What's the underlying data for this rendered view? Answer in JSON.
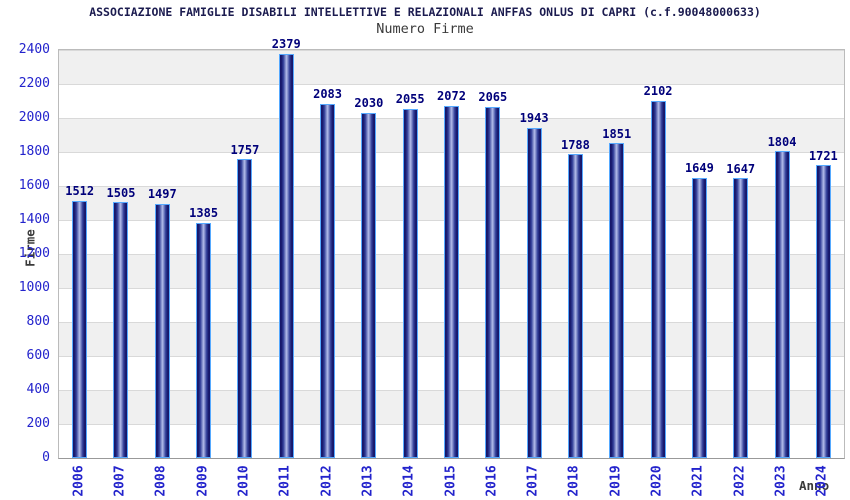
{
  "chart_data": {
    "type": "bar",
    "title": "ASSOCIAZIONE FAMIGLIE DISABILI INTELLETTIVE E RELAZIONALI ANFFAS ONLUS DI CAPRI (c.f.90048000633)",
    "subtitle": "Numero Firme",
    "xlabel": "Anno",
    "ylabel": "Firme",
    "categories": [
      "2006",
      "2007",
      "2008",
      "2009",
      "2010",
      "2011",
      "2012",
      "2013",
      "2014",
      "2015",
      "2016",
      "2017",
      "2018",
      "2019",
      "2020",
      "2021",
      "2022",
      "2023",
      "2024"
    ],
    "values": [
      1512,
      1505,
      1497,
      1385,
      1757,
      2379,
      2083,
      2030,
      2055,
      2072,
      2065,
      1943,
      1788,
      1851,
      2102,
      1649,
      1647,
      1804,
      1721
    ],
    "ylim": [
      0,
      2400
    ],
    "ytick_step": 200,
    "grid": true,
    "legend": "none",
    "background_bands": "alternating horizontal gray/white every 200 units"
  },
  "colors": {
    "title_color": "#1b1b4f",
    "subtitle_color": "#3a3a3a",
    "axis_title_color": "#3a3a3a",
    "tick_color": "#2323cc",
    "value_color": "#00007a",
    "grid_color": "#d9d9d9",
    "band_color": "#f0f0f0",
    "plot_border": "#bbbbbb",
    "bar_edge": "#17176b",
    "bar_inner": "#33409a",
    "bar_mid": "#b4bdea",
    "bar_border": "#55a9ff"
  }
}
